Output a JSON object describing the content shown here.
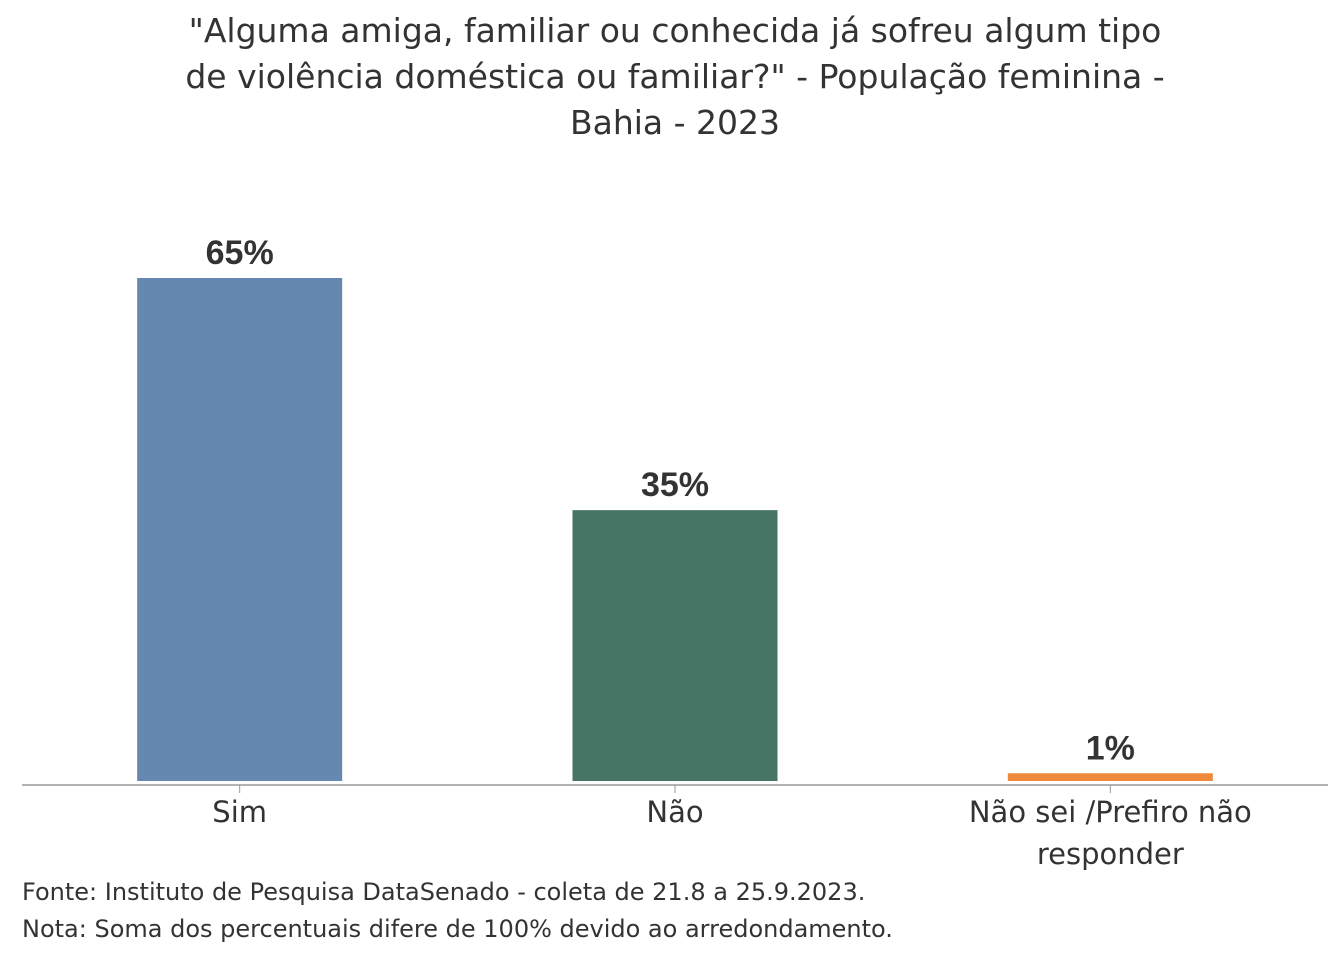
{
  "chart_data": {
    "type": "bar",
    "title_lines": [
      "\"Alguma amiga, familiar ou conhecida já sofreu algum tipo",
      "de violência doméstica ou familiar?\" - População feminina -",
      "Bahia - 2023"
    ],
    "categories": [
      [
        "Sim"
      ],
      [
        "Não"
      ],
      [
        "Não sei /Prefiro não",
        "responder"
      ]
    ],
    "values": [
      65,
      35,
      1
    ],
    "value_labels": [
      "65%",
      "35%",
      "1%"
    ],
    "colors": [
      "#6688b0",
      "#467565",
      "#f0893c"
    ],
    "ylim": [
      0,
      65
    ],
    "xlabel": "",
    "ylabel": "",
    "grid": false,
    "legend": "none"
  },
  "footer": {
    "source": "Fonte: Instituto de Pesquisa DataSenado - coleta de 21.8 a 25.9.2023.",
    "note": "Nota: Soma dos percentuais difere de 100% devido ao arredondamento."
  }
}
